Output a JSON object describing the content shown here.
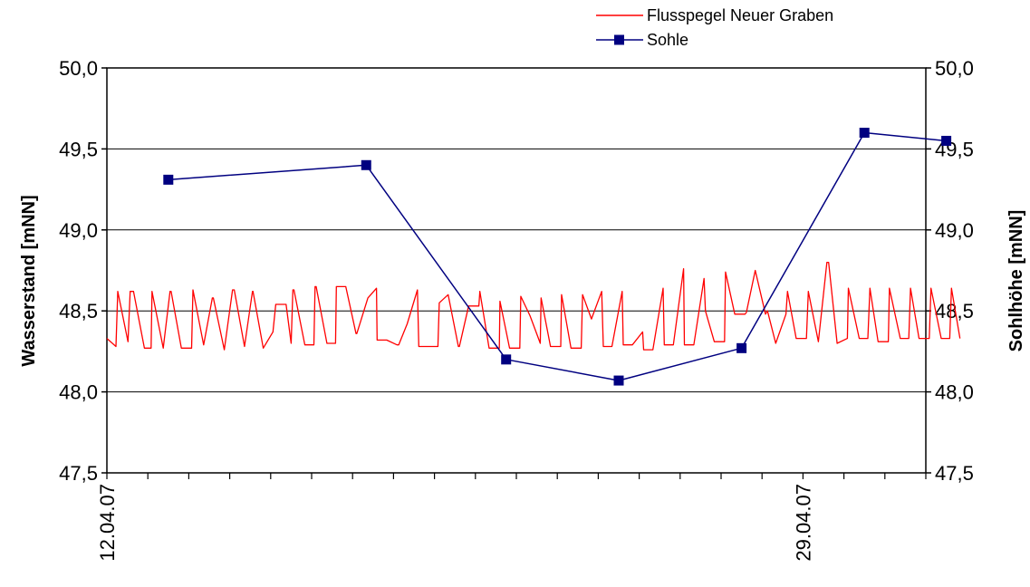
{
  "chart_data": {
    "type": "line",
    "title": "",
    "ylabel_left": "Wasserstand [mNN]",
    "ylabel_right": "Sohlhöhe [mNN]",
    "xlabel": "",
    "x_start": "12.04.07",
    "x_end": "02.05.07",
    "x_tick_labels": [
      "12.04.07",
      "29.04.07"
    ],
    "x_tick_step_days": 1,
    "ylim": [
      47.5,
      50.0
    ],
    "y_ticks": [
      "47,5",
      "48,0",
      "48,5",
      "49,0",
      "49,5",
      "50,0"
    ],
    "grid": true,
    "legend_position": "top-right",
    "series": [
      {
        "name": "Flusspegel Neuer Graben",
        "color": "#ff0000",
        "marker": "none",
        "x": [
          "12.04.07 00:00",
          "12.04.07 05:19",
          "12.04.07 06:22",
          "12.04.07 12:22",
          "12.04.07 13:38",
          "12.04.07 15:36",
          "12.04.07 21:58",
          "13.04.07 01:56",
          "13.04.07 02:27",
          "13.04.07 09:00",
          "13.04.07 13:00",
          "13.04.07 13:38",
          "13.04.07 19:38",
          "14.04.07 01:38",
          "14.04.07 02:26",
          "14.04.07 08:42",
          "14.04.07 13:48",
          "14.04.07 14:23",
          "14.04.07 20:50",
          "15.04.07 01:38",
          "15.04.07 02:38",
          "15.04.07 08:38",
          "15.04.07 13:20",
          "15.04.07 13:38",
          "15.04.07 19:38",
          "16.04.07 01:20",
          "16.04.07 03:00",
          "16.04.07 09:00",
          "16.04.07 12:00",
          "16.04.07 13:00",
          "16.04.07 13:38",
          "16.04.07 20:00",
          "17.04.07 01:20",
          "17.04.07 02:00",
          "17.04.07 02:38",
          "17.04.07 09:00",
          "17.04.07 14:00",
          "17.04.07 14:31",
          "17.04.07 20:00",
          "18.04.07 02:00",
          "18.04.07 02:29",
          "18.04.07 09:00",
          "18.04.07 14:00",
          "18.04.07 14:24",
          "18.04.07 20:00",
          "19.04.07 02:00",
          "19.04.07 03:02",
          "19.04.07 08:00",
          "19.04.07 14:00",
          "19.04.07 14:49",
          "19.04.07 20:00",
          "20.04.07 02:00",
          "20.04.07 02:50",
          "20.04.07 08:00",
          "20.04.07 14:00",
          "20.04.07 14:36",
          "20.04.07 20:00",
          "21.04.07 02:00",
          "21.04.07 02:37",
          "21.04.07 08:00",
          "21.04.07 14:00",
          "21.04.07 14:24",
          "21.04.07 20:00",
          "22.04.07 02:00",
          "22.04.07 02:36",
          "22.04.07 08:00",
          "22.04.07 14:00",
          "22.04.07 14:31",
          "22.04.07 20:00",
          "23.04.07 02:00",
          "23.04.07 02:31",
          "23.04.07 08:00",
          "23.04.07 14:00",
          "23.04.07 14:50",
          "23.04.07 20:00",
          "24.04.07 02:00",
          "24.04.07 03:00",
          "24.04.07 08:00",
          "24.04.07 14:00",
          "24.04.07 14:38",
          "24.04.07 20:00",
          "25.04.07 02:00",
          "25.04.07 02:36",
          "25.04.07 08:00",
          "25.04.07 14:00",
          "25.04.07 14:43",
          "25.04.07 20:00",
          "26.04.07 02:00",
          "26.04.07 02:29",
          "26.04.07 08:00",
          "26.04.07 14:00",
          "26.04.07 14:48",
          "26.04.07 20:00",
          "27.04.07 02:00",
          "27.04.07 02:36",
          "27.04.07 08:00",
          "27.04.07 14:00",
          "27.04.07 14:48",
          "27.04.07 20:00",
          "28.04.07 02:00",
          "28.04.07 03:12",
          "28.04.07 08:00",
          "28.04.07 14:00",
          "28.04.07 14:55",
          "28.04.07 20:00",
          "29.04.07 02:00",
          "29.04.07 03:07",
          "29.04.07 09:00",
          "29.04.07 14:00",
          "29.04.07 15:02",
          "29.04.07 20:00",
          "30.04.07 02:00",
          "30.04.07 02:36",
          "30.04.07 09:00",
          "30.04.07 14:00",
          "30.04.07 15:14",
          "30.04.07 20:00",
          "01.05.07 02:00",
          "01.05.07 02:38",
          "01.05.07 09:00",
          "01.05.07 14:00",
          "01.05.07 15:02",
          "01.05.07 20:00",
          "02.05.07 02:00",
          "02.05.07 03:00",
          "02.05.07 09:00",
          "02.05.07 14:00",
          "02.05.07 15:00",
          "02.05.07 20:00"
        ],
        "values": [
          48.33,
          48.28,
          48.62,
          48.31,
          48.62,
          48.62,
          48.27,
          48.27,
          48.62,
          48.27,
          48.62,
          48.62,
          48.27,
          48.27,
          48.63,
          48.29,
          48.58,
          48.58,
          48.26,
          48.63,
          48.63,
          48.28,
          48.62,
          48.62,
          48.27,
          48.37,
          48.54,
          48.54,
          48.3,
          48.63,
          48.63,
          48.29,
          48.29,
          48.65,
          48.65,
          48.3,
          48.3,
          48.65,
          48.65,
          48.36,
          48.36,
          48.58,
          48.64,
          48.32,
          48.32,
          48.29,
          48.29,
          48.42,
          48.63,
          48.28,
          48.28,
          48.28,
          48.55,
          48.6,
          48.28,
          48.28,
          48.53,
          48.53,
          48.62,
          48.27,
          48.27,
          48.56,
          48.27,
          48.27,
          48.59,
          48.47,
          48.3,
          48.58,
          48.28,
          48.28,
          48.6,
          48.27,
          48.27,
          48.6,
          48.45,
          48.62,
          48.28,
          48.28,
          48.62,
          48.29,
          48.29,
          48.37,
          48.26,
          48.26,
          48.64,
          48.29,
          48.29,
          48.76,
          48.29,
          48.29,
          48.7,
          48.5,
          48.31,
          48.31,
          48.74,
          48.48,
          48.48,
          48.49,
          48.75,
          48.48,
          48.5,
          48.3,
          48.48,
          48.62,
          48.33,
          48.33,
          48.62,
          48.31,
          48.8,
          48.8,
          48.3,
          48.33,
          48.64,
          48.33,
          48.33,
          48.64,
          48.31,
          48.31,
          48.64,
          48.33,
          48.33,
          48.64,
          48.33,
          48.33,
          48.64,
          48.33,
          48.33,
          48.64,
          48.33
        ]
      },
      {
        "name": "Sohle",
        "color": "#000080",
        "marker": "square",
        "x": [
          "13.04.07 12:00",
          "18.04.07 08:00",
          "21.04.07 18:00",
          "24.04.07 12:00",
          "27.04.07 12:00",
          "30.04.07 12:00",
          "02.05.07 12:00"
        ],
        "values": [
          49.31,
          49.4,
          48.2,
          48.07,
          48.27,
          49.6,
          49.55
        ]
      }
    ]
  }
}
